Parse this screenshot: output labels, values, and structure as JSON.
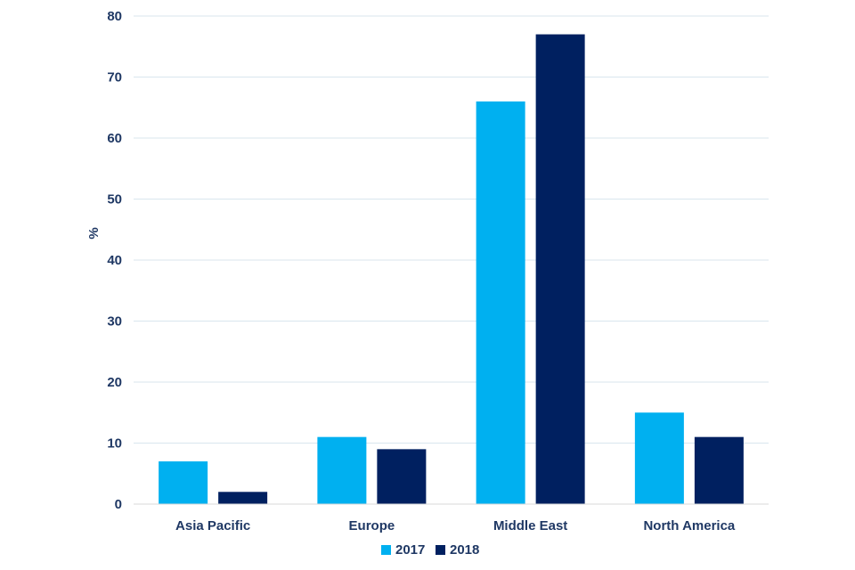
{
  "chart_data": {
    "type": "bar",
    "title": "",
    "xlabel": "",
    "ylabel": "%",
    "categories": [
      "Asia Pacific",
      "Europe",
      "Middle East",
      "North America"
    ],
    "series": [
      {
        "name": "2017",
        "values": [
          7,
          11,
          66,
          15
        ],
        "color": "#00b0f0"
      },
      {
        "name": "2018",
        "values": [
          2,
          9,
          77,
          11
        ],
        "color": "#002060"
      }
    ],
    "ylim": [
      0,
      80
    ],
    "yticks": [
      0,
      10,
      20,
      30,
      40,
      50,
      60,
      70,
      80
    ],
    "grid": true,
    "grid_color": "#d9e6ee",
    "text_color": "#1f3864",
    "legend_position": "bottom-center"
  }
}
